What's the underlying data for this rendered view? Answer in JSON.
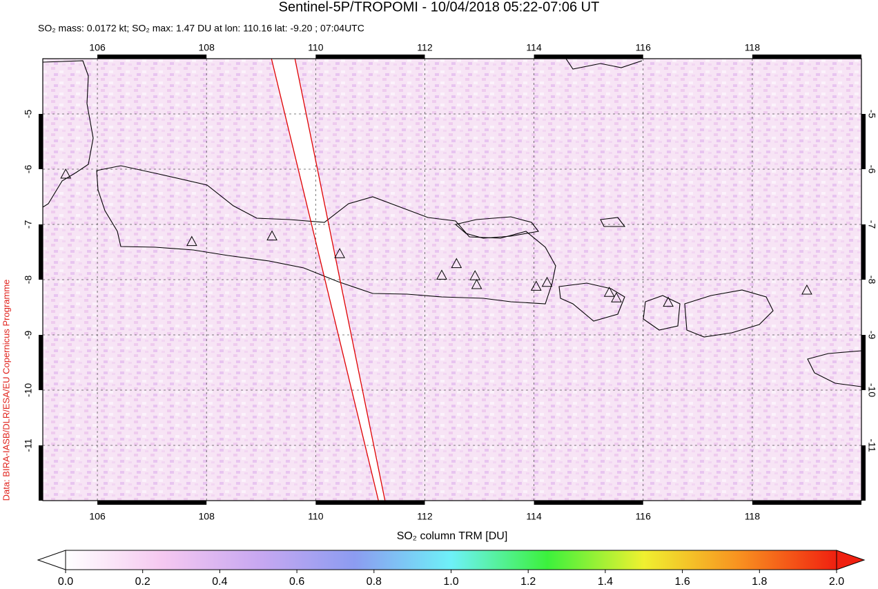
{
  "chart_data": {
    "type": "map",
    "title": "Sentinel-5P/TROPOMI - 10/04/2018 05:22-07:06 UT",
    "subtitle": "SO₂ mass: 0.0172 kt; SO₂ max: 1.47 DU at lon: 110.16 lat: -9.20 ; 07:04UTC",
    "credit": "Data: BIRA-IASB/DLR/ESA/EU Copernicus Programme",
    "xlim": [
      105,
      120
    ],
    "ylim": [
      -12,
      -4
    ],
    "xticks": [
      106,
      108,
      110,
      112,
      114,
      116,
      118
    ],
    "yticks": [
      -5,
      -6,
      -7,
      -8,
      -9,
      -10,
      -11
    ],
    "grid": true,
    "volcanoes": {
      "lon": [
        105.42,
        107.73,
        109.2,
        110.44,
        112.31,
        112.58,
        112.92,
        112.95,
        114.04,
        114.24,
        115.38,
        115.51,
        116.46,
        119.0
      ],
      "lat": [
        -6.1,
        -7.32,
        -7.22,
        -7.54,
        -7.93,
        -7.72,
        -7.94,
        -8.1,
        -8.13,
        -8.06,
        -8.24,
        -8.34,
        -8.42,
        -8.2
      ]
    },
    "swath_edges": {
      "color": "#e00000",
      "lines": [
        {
          "lon": [
            109.19,
            111.15
          ],
          "lat": [
            -4,
            -12
          ]
        },
        {
          "lon": [
            109.62,
            111.27
          ],
          "lat": [
            -4,
            -12
          ]
        }
      ]
    },
    "colorbar": {
      "label": "SO₂ column TRM [DU]",
      "clim": [
        0,
        2
      ],
      "colors": [
        "#ffffff",
        "#f5c8f0",
        "#c8a8f0",
        "#8c9cf0",
        "#6ef0f8",
        "#3cf03c",
        "#f0f030",
        "#f89020",
        "#f02010"
      ],
      "ticks": [
        {
          "value": 0,
          "label": "0.0"
        },
        {
          "value": 0.2,
          "label": "0.2"
        },
        {
          "value": 0.4,
          "label": "0.4"
        },
        {
          "value": 0.6,
          "label": "0.6"
        },
        {
          "value": 0.8,
          "label": "0.8"
        },
        {
          "value": 1.0,
          "label": "1.0"
        },
        {
          "value": 1.2,
          "label": "1.2"
        },
        {
          "value": 1.4,
          "label": "1.4"
        },
        {
          "value": 1.6,
          "label": "1.6"
        },
        {
          "value": 1.8,
          "label": "1.8"
        },
        {
          "value": 2.0,
          "label": "2.0"
        }
      ]
    }
  }
}
